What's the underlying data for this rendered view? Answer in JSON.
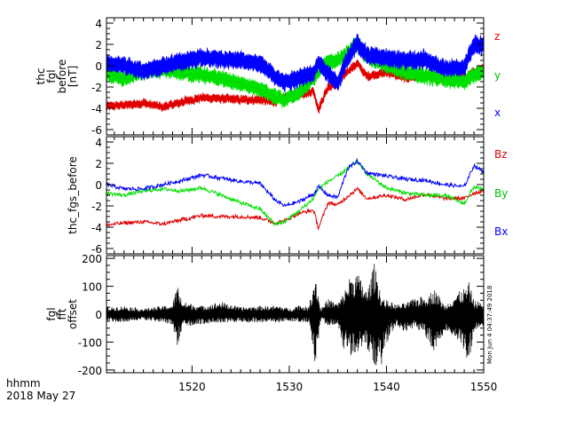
{
  "figure": {
    "time_axis": {
      "unit_label": "hhmm",
      "date_label": "2018 May 27",
      "ticks": [
        "1520",
        "1530",
        "1540",
        "1550"
      ],
      "tick_values": [
        1520,
        1530,
        1540,
        1550
      ],
      "range": [
        1511.2,
        1550
      ]
    },
    "timestamp": "Mon Jun  4 04:37:49 2018"
  },
  "chart_data": [
    {
      "type": "line",
      "ylabel": [
        "thc",
        "fgl",
        "before",
        "[nT]"
      ],
      "ylim": [
        -6.5,
        4.5
      ],
      "yticks": [
        4,
        2,
        0,
        -2,
        -4,
        -6
      ],
      "grid": false,
      "legend": "right",
      "x": [
        1511.2,
        1513,
        1515,
        1517,
        1519,
        1521,
        1523,
        1525,
        1527,
        1528.5,
        1529.5,
        1531,
        1532.5,
        1533,
        1534,
        1535,
        1536,
        1537,
        1538,
        1540,
        1542,
        1544,
        1546,
        1548,
        1549,
        1550
      ],
      "series": [
        {
          "name": "z",
          "color": "#e00000",
          "band": 0.3,
          "values": [
            -3.8,
            -3.7,
            -3.5,
            -3.9,
            -3.4,
            -3.0,
            -3.1,
            -3.2,
            -3.2,
            -3.4,
            -3.0,
            -2.7,
            -2.4,
            -4.1,
            -2.0,
            -1.7,
            -0.5,
            0.2,
            -1.0,
            -0.6,
            -1.2,
            -0.9,
            -1.4,
            -1.1,
            -0.6,
            -0.3
          ]
        },
        {
          "name": "y",
          "color": "#00e000",
          "band": 0.6,
          "values": [
            -0.8,
            -1.2,
            -0.5,
            -0.4,
            -0.6,
            -0.9,
            -1.2,
            -1.7,
            -2.2,
            -2.9,
            -3.3,
            -2.6,
            -1.2,
            -0.4,
            0.3,
            0.5,
            1.2,
            2.1,
            0.8,
            0.0,
            -0.6,
            -1.0,
            -1.3,
            -1.5,
            -0.9,
            -0.6
          ]
        },
        {
          "name": "x",
          "color": "#0000ff",
          "band": 0.7,
          "values": [
            0.2,
            0.0,
            -0.5,
            0.0,
            0.4,
            0.8,
            0.6,
            0.5,
            0.2,
            -1.0,
            -1.6,
            -1.2,
            -0.7,
            0.3,
            -0.8,
            -1.6,
            0.7,
            2.1,
            1.0,
            0.7,
            0.5,
            0.6,
            -0.3,
            -0.2,
            2.0,
            1.8
          ]
        }
      ]
    },
    {
      "type": "line",
      "ylabel": [
        "thc_fgs_before"
      ],
      "ylim": [
        -6.5,
        4.5
      ],
      "yticks": [
        4,
        2,
        0,
        -2,
        -4,
        -6
      ],
      "grid": false,
      "legend": "right",
      "x": [
        1511.2,
        1513,
        1515,
        1517,
        1519,
        1521,
        1523,
        1525,
        1527,
        1528.5,
        1529.5,
        1531,
        1532.5,
        1533,
        1534,
        1535,
        1536,
        1537,
        1538,
        1540,
        1542,
        1544,
        1546,
        1548,
        1549,
        1550
      ],
      "series": [
        {
          "name": "Bz",
          "color": "#e00000",
          "band": 0,
          "values": [
            -3.8,
            -3.6,
            -3.5,
            -3.7,
            -3.3,
            -2.9,
            -3.0,
            -3.0,
            -3.1,
            -3.6,
            -3.4,
            -2.7,
            -2.4,
            -4.1,
            -1.7,
            -1.9,
            -1.1,
            -0.4,
            -1.3,
            -1.0,
            -1.4,
            -0.9,
            -1.3,
            -1.3,
            -0.8,
            -0.6
          ]
        },
        {
          "name": "By",
          "color": "#00e000",
          "band": 0,
          "values": [
            -0.8,
            -1.0,
            -0.6,
            -0.4,
            -0.6,
            -0.3,
            -1.0,
            -1.7,
            -2.3,
            -3.7,
            -3.5,
            -2.5,
            -1.3,
            -0.4,
            0.3,
            0.8,
            1.5,
            2.2,
            1.0,
            -0.3,
            -0.8,
            -1.0,
            -1.0,
            -1.8,
            -0.2,
            -0.5
          ]
        },
        {
          "name": "Bx",
          "color": "#0000ff",
          "band": 0,
          "values": [
            0.0,
            -0.4,
            -0.4,
            0.0,
            0.4,
            0.9,
            0.6,
            0.3,
            0.1,
            -1.4,
            -2.0,
            -1.6,
            -0.9,
            -0.2,
            -1.0,
            -1.2,
            1.5,
            2.2,
            1.1,
            0.8,
            0.5,
            0.4,
            0.0,
            -0.2,
            1.8,
            1.2
          ]
        }
      ]
    },
    {
      "type": "line",
      "ylabel": [
        "fgl",
        "fft",
        "offset"
      ],
      "ylim": [
        -210,
        210
      ],
      "yticks": [
        200,
        100,
        0,
        -100,
        -200
      ],
      "grid": false,
      "series": [
        {
          "name": "offset",
          "color": "#000000",
          "values": []
        }
      ],
      "envelope_x": [
        1511.2,
        1513,
        1515,
        1517,
        1518,
        1518.5,
        1519,
        1521,
        1523,
        1525,
        1527,
        1529,
        1530,
        1531,
        1532,
        1532.7,
        1533.2,
        1534,
        1535,
        1535.5,
        1536.3,
        1537,
        1538,
        1538.8,
        1539.5,
        1540,
        1541,
        1542,
        1543,
        1544,
        1545,
        1546,
        1547,
        1548.3,
        1548.5,
        1549,
        1550
      ],
      "envelope_upper": [
        25,
        30,
        20,
        30,
        35,
        110,
        45,
        30,
        45,
        25,
        30,
        30,
        20,
        35,
        25,
        150,
        20,
        55,
        40,
        70,
        140,
        150,
        80,
        190,
        60,
        50,
        35,
        40,
        60,
        65,
        90,
        30,
        70,
        100,
        115,
        50,
        40
      ],
      "envelope_lower": [
        -25,
        -30,
        -20,
        -30,
        -40,
        -120,
        -50,
        -35,
        -30,
        -30,
        -30,
        -30,
        -25,
        -30,
        -30,
        -200,
        -25,
        -40,
        -40,
        -120,
        -150,
        -140,
        -130,
        -190,
        -190,
        -110,
        -40,
        -70,
        -50,
        -80,
        -150,
        -60,
        -80,
        -160,
        -180,
        -70,
        -40
      ]
    }
  ]
}
